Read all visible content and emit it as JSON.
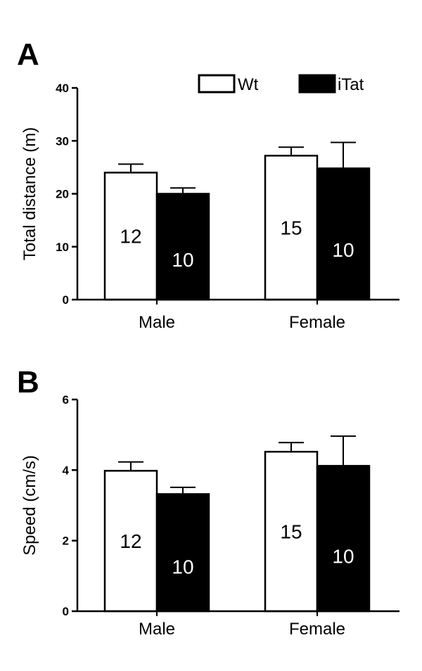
{
  "legend": {
    "entries": [
      {
        "name": "Wt",
        "fill": "#ffffff"
      },
      {
        "name": "iTat",
        "fill": "#000000"
      }
    ]
  },
  "chart_data": [
    {
      "type": "bar",
      "panel": "A",
      "ylabel": "Total distance (m)",
      "ylim": [
        0,
        40
      ],
      "yticks": [
        0,
        10,
        20,
        30,
        40
      ],
      "categories": [
        "Male",
        "Female"
      ],
      "series": [
        {
          "name": "Wt",
          "color": "#ffffff",
          "values": [
            24.0,
            27.2
          ],
          "errors": [
            1.6,
            1.6
          ],
          "n": [
            "12",
            "15"
          ]
        },
        {
          "name": "iTat",
          "color": "#000000",
          "values": [
            20.0,
            24.8
          ],
          "errors": [
            1.1,
            4.9
          ],
          "n": [
            "10",
            "10"
          ]
        }
      ],
      "legend_position": "top-right",
      "grid": false
    },
    {
      "type": "bar",
      "panel": "B",
      "ylabel": "Speed (cm/s)",
      "ylim": [
        0,
        6
      ],
      "yticks": [
        0,
        2,
        4,
        6
      ],
      "categories": [
        "Male",
        "Female"
      ],
      "series": [
        {
          "name": "Wt",
          "color": "#ffffff",
          "values": [
            3.98,
            4.52
          ],
          "errors": [
            0.25,
            0.26
          ],
          "n": [
            "12",
            "15"
          ]
        },
        {
          "name": "iTat",
          "color": "#000000",
          "values": [
            3.32,
            4.12
          ],
          "errors": [
            0.19,
            0.84
          ],
          "n": [
            "10",
            "10"
          ]
        }
      ],
      "legend_position": "none",
      "grid": false
    }
  ]
}
